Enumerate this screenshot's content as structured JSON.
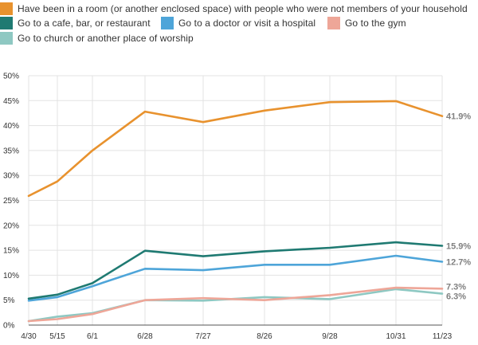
{
  "legend": {
    "items": [
      {
        "label": "Have been in a room (or another enclosed space) with people who were not members of your household",
        "color": "#e8922e"
      },
      {
        "label": "Go to a cafe, bar, or restaurant",
        "color": "#1f7a72"
      },
      {
        "label": "Go to a doctor or visit a hospital",
        "color": "#4ea5d9"
      },
      {
        "label": "Go to the gym",
        "color": "#eea698"
      },
      {
        "label": "Go to church or another place of worship",
        "color": "#8ec8c2"
      }
    ]
  },
  "chart_data": {
    "type": "line",
    "title": "",
    "xlabel": "",
    "ylabel": "",
    "x": [
      "4/30",
      "5/15",
      "6/1",
      "6/28",
      "7/27",
      "8/26",
      "9/28",
      "10/31",
      "11/23"
    ],
    "ylim": [
      0,
      50
    ],
    "y_ticks": [
      "0%",
      "5%",
      "10%",
      "15%",
      "20%",
      "25%",
      "30%",
      "35%",
      "40%",
      "45%",
      "50%"
    ],
    "grid": true,
    "series": [
      {
        "name": "Have been in a room (or another enclosed space) with people who were not members of your household",
        "color": "#e8922e",
        "values": [
          25.9,
          28.8,
          35.0,
          42.8,
          40.7,
          43.0,
          44.7,
          44.9,
          41.9
        ],
        "end_label": "41.9%"
      },
      {
        "name": "Go to a cafe, bar, or restaurant",
        "color": "#1f7a72",
        "values": [
          5.3,
          6.1,
          8.4,
          14.9,
          13.8,
          14.8,
          15.5,
          16.6,
          15.9
        ],
        "end_label": "15.9%"
      },
      {
        "name": "Go to a doctor or visit a hospital",
        "color": "#4ea5d9",
        "values": [
          4.9,
          5.6,
          7.8,
          11.3,
          11.0,
          12.1,
          12.1,
          13.9,
          12.7
        ],
        "end_label": "12.7%"
      },
      {
        "name": "Go to the gym",
        "color": "#eea698",
        "values": [
          0.8,
          1.2,
          2.2,
          5.0,
          5.4,
          5.0,
          6.0,
          7.5,
          7.3
        ],
        "end_label": "7.3%"
      },
      {
        "name": "Go to church or another place of worship",
        "color": "#8ec8c2",
        "values": [
          0.8,
          1.7,
          2.4,
          5.0,
          4.9,
          5.6,
          5.2,
          7.2,
          6.3
        ],
        "end_label": "6.3%"
      }
    ]
  }
}
